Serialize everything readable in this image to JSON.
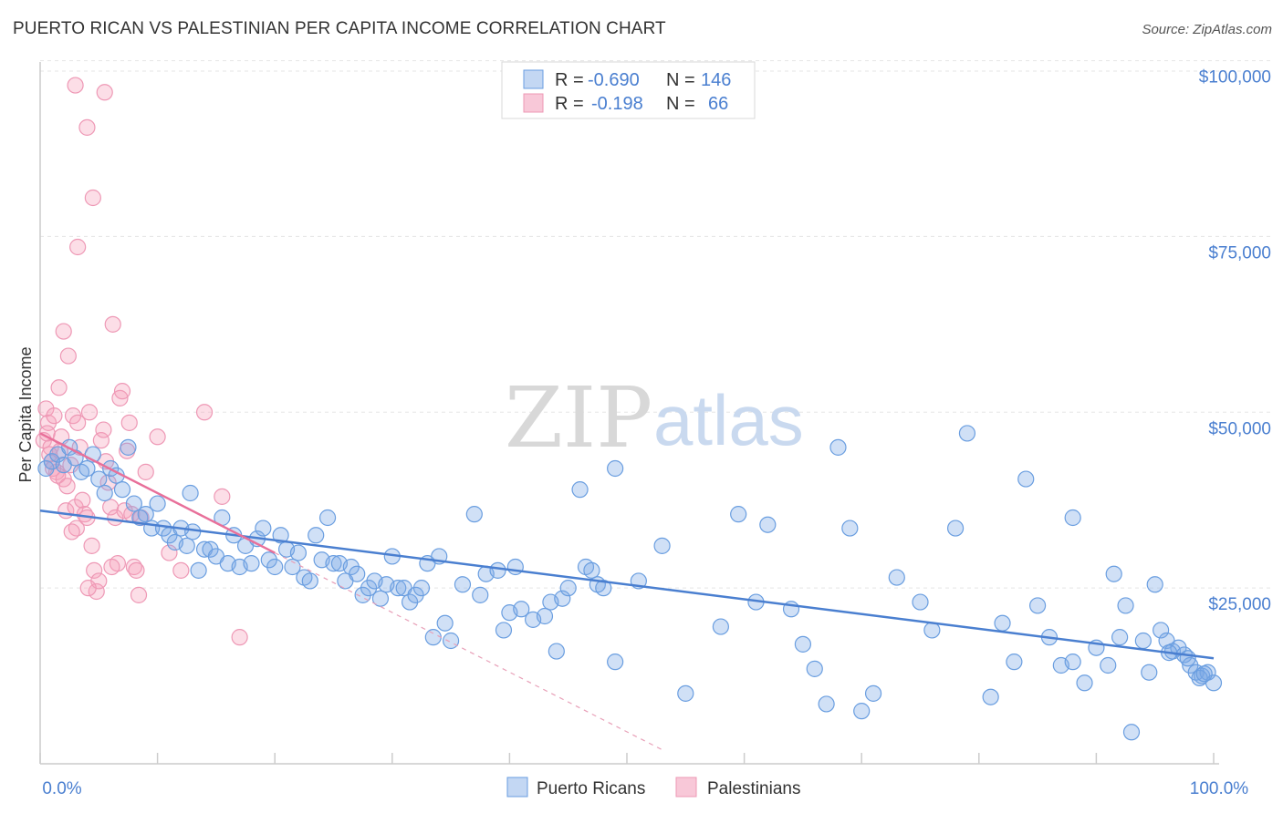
{
  "title": "PUERTO RICAN VS PALESTINIAN PER CAPITA INCOME CORRELATION CHART",
  "source": "Source: ZipAtlas.com",
  "watermark": {
    "zip": "ZIP",
    "atlas": "atlas"
  },
  "colors": {
    "blue": "#4a7fd0",
    "blue_fill": "rgba(120,165,230,0.35)",
    "blue_stroke": "#6a9ee0",
    "pink": "#e8709a",
    "pink_fill": "rgba(245,160,185,0.35)",
    "pink_stroke": "#ee98b5",
    "grid": "#e5e5e5"
  },
  "legend": {
    "rows": [
      {
        "r_label": "R =",
        "r_value": "-0.690",
        "n_label": "N =",
        "n_value": "146"
      },
      {
        "r_label": "R =",
        "r_value": "-0.198",
        "n_label": "N =",
        "n_value": "66"
      }
    ]
  },
  "chart_data": {
    "type": "scatter",
    "title": "PUERTO RICAN VS PALESTINIAN PER CAPITA INCOME CORRELATION CHART",
    "xlabel": "",
    "ylabel": "Per Capita Income",
    "xlim": [
      0,
      100
    ],
    "ylim": [
      0,
      105000
    ],
    "x_tick_labels": [
      "0.0%",
      "100.0%"
    ],
    "y_ticks": [
      25000,
      50000,
      75000,
      100000
    ],
    "y_tick_labels": [
      "$25,000",
      "$50,000",
      "$75,000",
      "$100,000"
    ],
    "grid": true,
    "legend_position": "bottom-center",
    "series": [
      {
        "name": "Puerto Ricans",
        "color": "#4a7fd0",
        "r": -0.69,
        "n": 146,
        "trend": {
          "x": [
            0,
            100
          ],
          "y": [
            36000,
            15000
          ]
        },
        "points": [
          [
            0.5,
            42000
          ],
          [
            1,
            43000
          ],
          [
            1.5,
            44000
          ],
          [
            2,
            42500
          ],
          [
            2.5,
            45000
          ],
          [
            3,
            43500
          ],
          [
            3.5,
            41500
          ],
          [
            4,
            42000
          ],
          [
            4.5,
            44000
          ],
          [
            5,
            40500
          ],
          [
            5.5,
            38500
          ],
          [
            6,
            42000
          ],
          [
            6.5,
            41000
          ],
          [
            7,
            39000
          ],
          [
            7.5,
            45000
          ],
          [
            8,
            37000
          ],
          [
            8.5,
            35000
          ],
          [
            9,
            35500
          ],
          [
            9.5,
            33500
          ],
          [
            10,
            37000
          ],
          [
            10.5,
            33500
          ],
          [
            11,
            32500
          ],
          [
            11.5,
            31500
          ],
          [
            12,
            33500
          ],
          [
            12.5,
            31000
          ],
          [
            12.8,
            38500
          ],
          [
            13,
            33000
          ],
          [
            13.5,
            27500
          ],
          [
            14,
            30500
          ],
          [
            14.5,
            30500
          ],
          [
            15,
            29500
          ],
          [
            15.5,
            35000
          ],
          [
            16,
            28500
          ],
          [
            16.5,
            32500
          ],
          [
            17,
            28000
          ],
          [
            17.5,
            31000
          ],
          [
            18,
            28500
          ],
          [
            18.5,
            32000
          ],
          [
            19,
            33500
          ],
          [
            19.5,
            29000
          ],
          [
            20,
            28000
          ],
          [
            20.5,
            32500
          ],
          [
            21,
            30500
          ],
          [
            21.5,
            28000
          ],
          [
            22,
            30000
          ],
          [
            22.5,
            26500
          ],
          [
            23,
            26000
          ],
          [
            23.5,
            32500
          ],
          [
            24,
            29000
          ],
          [
            24.5,
            35000
          ],
          [
            25,
            28500
          ],
          [
            25.5,
            28500
          ],
          [
            26,
            26000
          ],
          [
            26.5,
            28000
          ],
          [
            27,
            27000
          ],
          [
            27.5,
            24000
          ],
          [
            28,
            25000
          ],
          [
            28.5,
            26000
          ],
          [
            29,
            23500
          ],
          [
            29.5,
            25500
          ],
          [
            30,
            29500
          ],
          [
            30.5,
            25000
          ],
          [
            31,
            25000
          ],
          [
            31.5,
            23000
          ],
          [
            32,
            24000
          ],
          [
            32.5,
            25000
          ],
          [
            33,
            28500
          ],
          [
            33.5,
            18000
          ],
          [
            34,
            29500
          ],
          [
            34.5,
            20000
          ],
          [
            35,
            17500
          ],
          [
            36,
            25500
          ],
          [
            37,
            35500
          ],
          [
            37.5,
            24000
          ],
          [
            38,
            27000
          ],
          [
            39,
            27500
          ],
          [
            39.5,
            19000
          ],
          [
            40,
            21500
          ],
          [
            40.5,
            28000
          ],
          [
            41,
            22000
          ],
          [
            42,
            20500
          ],
          [
            43,
            21000
          ],
          [
            43.5,
            23000
          ],
          [
            44,
            16000
          ],
          [
            44.5,
            23500
          ],
          [
            45,
            25000
          ],
          [
            46,
            39000
          ],
          [
            46.5,
            28000
          ],
          [
            47,
            27500
          ],
          [
            47.5,
            25500
          ],
          [
            48,
            25000
          ],
          [
            49,
            42000
          ],
          [
            49,
            14500
          ],
          [
            51,
            26000
          ],
          [
            53,
            31000
          ],
          [
            55,
            10000
          ],
          [
            58,
            19500
          ],
          [
            59.5,
            35500
          ],
          [
            61,
            23000
          ],
          [
            62,
            34000
          ],
          [
            64,
            22000
          ],
          [
            65,
            17000
          ],
          [
            66,
            13500
          ],
          [
            67,
            8500
          ],
          [
            68,
            45000
          ],
          [
            69,
            33500
          ],
          [
            70,
            7500
          ],
          [
            71,
            10000
          ],
          [
            73,
            26500
          ],
          [
            75,
            23000
          ],
          [
            76,
            19000
          ],
          [
            78,
            33500
          ],
          [
            79,
            47000
          ],
          [
            81,
            9500
          ],
          [
            82,
            20000
          ],
          [
            83,
            14500
          ],
          [
            84,
            40500
          ],
          [
            85,
            22500
          ],
          [
            86,
            18000
          ],
          [
            87,
            14000
          ],
          [
            88,
            35000
          ],
          [
            88,
            14500
          ],
          [
            89,
            11500
          ],
          [
            90,
            16500
          ],
          [
            91,
            14000
          ],
          [
            91.5,
            27000
          ],
          [
            92,
            18000
          ],
          [
            92.5,
            22500
          ],
          [
            93,
            4500
          ],
          [
            94,
            17500
          ],
          [
            94.5,
            13000
          ],
          [
            95,
            25500
          ],
          [
            95.5,
            19000
          ],
          [
            96,
            17500
          ],
          [
            96.5,
            16000
          ],
          [
            97,
            16500
          ],
          [
            97.5,
            15500
          ],
          [
            98,
            14000
          ],
          [
            98.5,
            13000
          ],
          [
            99,
            12500
          ],
          [
            99.5,
            13000
          ],
          [
            100,
            11500
          ],
          [
            96.2,
            15800
          ],
          [
            97.8,
            15000
          ],
          [
            98.8,
            12200
          ],
          [
            99.2,
            12800
          ]
        ]
      },
      {
        "name": "Palestinians",
        "color": "#e8709a",
        "r": -0.198,
        "n": 66,
        "trend": {
          "x": [
            0,
            20
          ],
          "y": [
            47000,
            30000
          ]
        },
        "trend_ext": {
          "x": [
            20,
            53
          ],
          "y": [
            30000,
            2000
          ]
        },
        "points": [
          [
            0.3,
            46000
          ],
          [
            0.5,
            50500
          ],
          [
            0.7,
            48500
          ],
          [
            0.9,
            45000
          ],
          [
            1,
            43000
          ],
          [
            1.2,
            49500
          ],
          [
            1.4,
            41500
          ],
          [
            1.6,
            53500
          ],
          [
            1.8,
            46500
          ],
          [
            2,
            61500
          ],
          [
            2.2,
            36000
          ],
          [
            2.4,
            58000
          ],
          [
            2.6,
            42500
          ],
          [
            2.8,
            49500
          ],
          [
            3,
            36500
          ],
          [
            3.2,
            48500
          ],
          [
            3.4,
            45000
          ],
          [
            3.6,
            37500
          ],
          [
            3.8,
            35500
          ],
          [
            4,
            35000
          ],
          [
            4.2,
            50000
          ],
          [
            4.4,
            31000
          ],
          [
            4.6,
            27500
          ],
          [
            4.8,
            24500
          ],
          [
            5,
            26000
          ],
          [
            5.2,
            46000
          ],
          [
            5.4,
            47500
          ],
          [
            5.6,
            43000
          ],
          [
            5.8,
            40000
          ],
          [
            6,
            36500
          ],
          [
            6.2,
            62500
          ],
          [
            6.4,
            35000
          ],
          [
            6.6,
            28500
          ],
          [
            6.8,
            52000
          ],
          [
            7,
            53000
          ],
          [
            7.2,
            36000
          ],
          [
            7.4,
            44500
          ],
          [
            7.6,
            48500
          ],
          [
            7.8,
            35500
          ],
          [
            8,
            28000
          ],
          [
            8.2,
            27500
          ],
          [
            8.4,
            24000
          ],
          [
            8.6,
            35000
          ],
          [
            9,
            41500
          ],
          [
            10,
            46500
          ],
          [
            11,
            30000
          ],
          [
            12,
            27500
          ],
          [
            14,
            50000
          ],
          [
            15.5,
            38000
          ],
          [
            17,
            18000
          ],
          [
            3,
            96500
          ],
          [
            5.5,
            95500
          ],
          [
            4,
            90500
          ],
          [
            4.5,
            80500
          ],
          [
            3.2,
            73500
          ],
          [
            2,
            40500
          ],
          [
            1.1,
            42000
          ],
          [
            3.1,
            33500
          ],
          [
            2.7,
            33000
          ],
          [
            6.1,
            28000
          ],
          [
            4.1,
            25000
          ],
          [
            0.6,
            47000
          ],
          [
            0.8,
            44000
          ],
          [
            1.5,
            41000
          ],
          [
            2.3,
            39500
          ],
          [
            1.7,
            44500
          ]
        ]
      }
    ]
  }
}
